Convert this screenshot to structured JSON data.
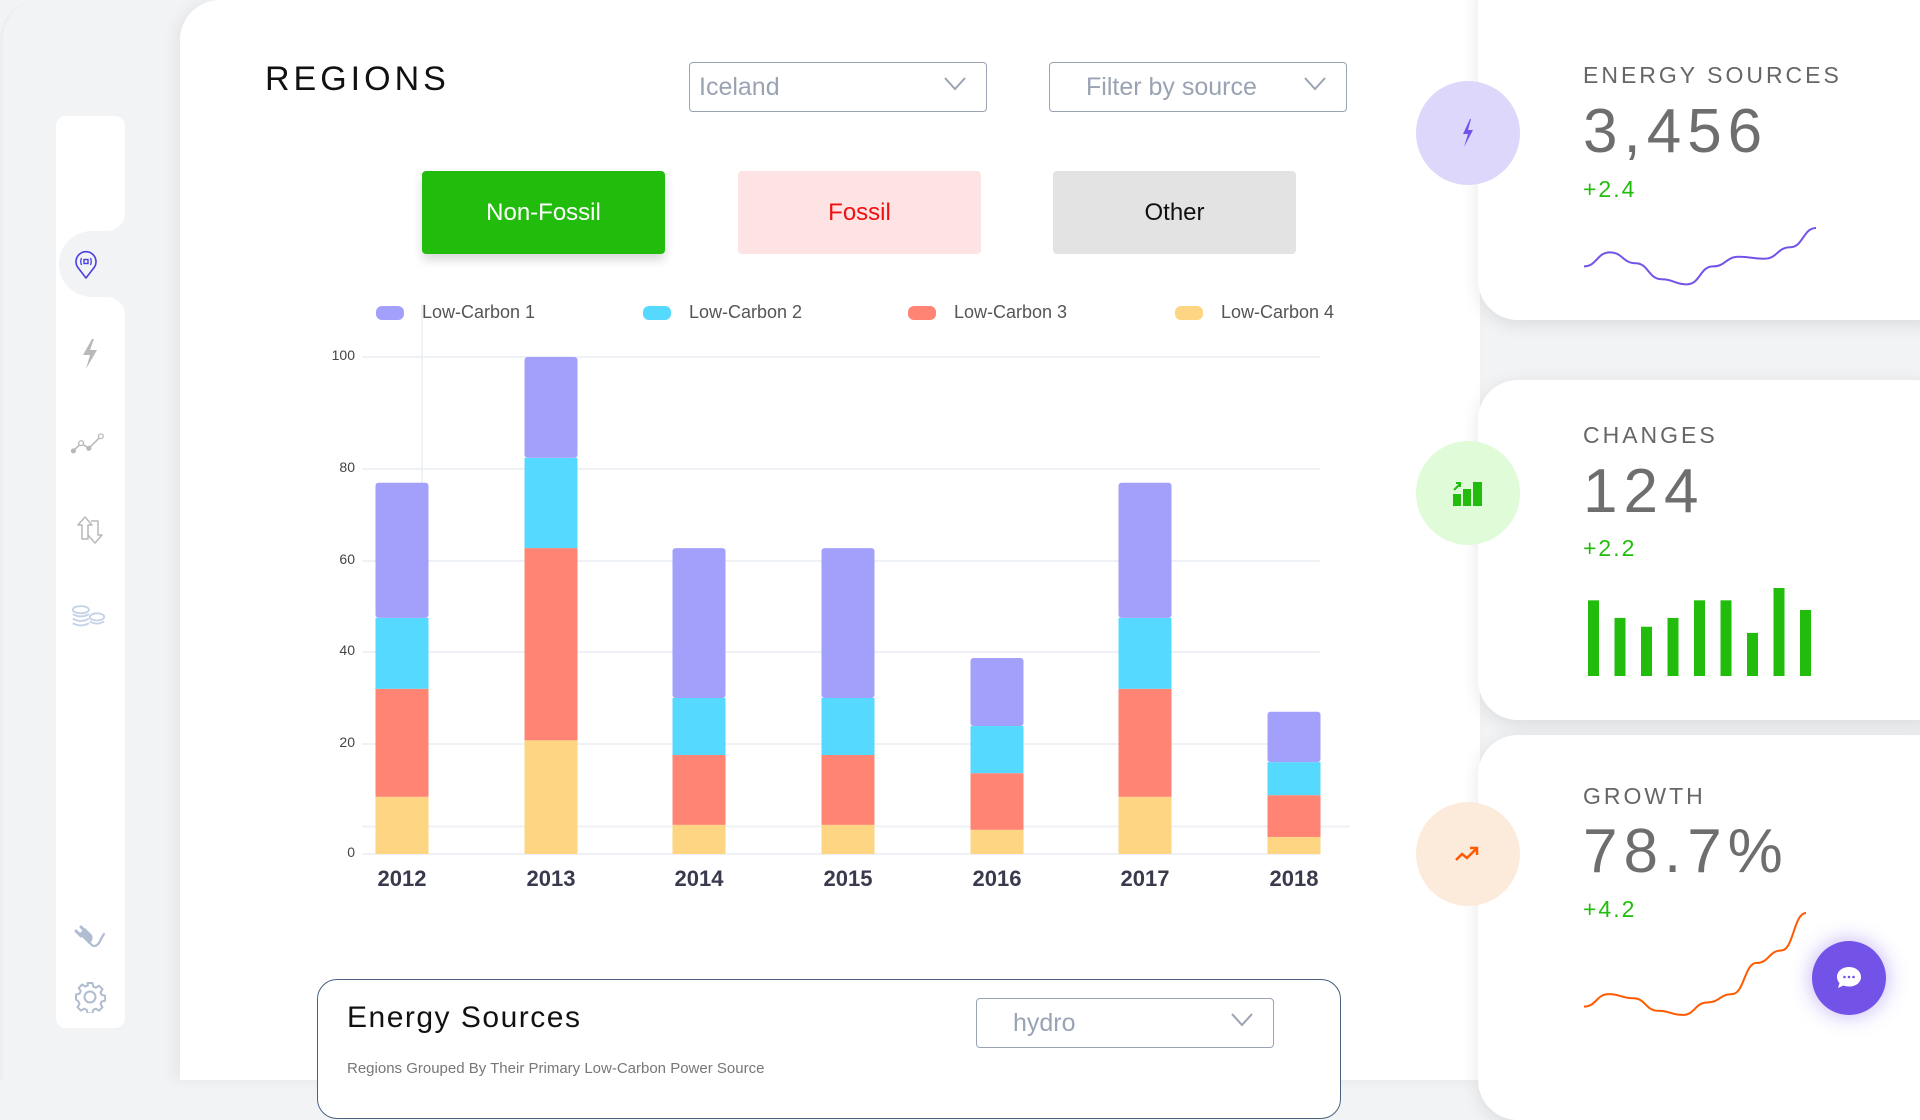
{
  "sidebar": {
    "items": [
      {
        "name": "regions",
        "icon": "map-pin-icon",
        "active": true
      },
      {
        "name": "energy",
        "icon": "lightning-icon",
        "active": false
      },
      {
        "name": "trends",
        "icon": "line-chart-icon",
        "active": false
      },
      {
        "name": "exchange",
        "icon": "swap-arrows-icon",
        "active": false
      },
      {
        "name": "costs",
        "icon": "coins-icon",
        "active": false
      }
    ],
    "bottom_items": [
      {
        "name": "plug",
        "icon": "plug-icon"
      },
      {
        "name": "settings",
        "icon": "gear-icon"
      }
    ],
    "active_color": "#4a3fe0",
    "icon_color": "#b9b9b9"
  },
  "header": {
    "title": "REGIONS",
    "region_select": {
      "value": "Iceland"
    },
    "source_select": {
      "placeholder": "Filter by source"
    }
  },
  "categories": {
    "buttons": [
      {
        "label": "Non-Fossil",
        "active": true,
        "bg": "#22bd0c",
        "color": "#ffffff"
      },
      {
        "label": "Fossil",
        "active": false,
        "bg": "#fde3e3",
        "color": "#f01010"
      },
      {
        "label": "Other",
        "active": false,
        "bg": "#e3e3e3",
        "color": "#111111"
      }
    ]
  },
  "chart_data": {
    "type": "bar",
    "stacked": true,
    "title": "",
    "xlabel": "",
    "ylabel": "",
    "categories": [
      "2012",
      "2013",
      "2014",
      "2015",
      "2016",
      "2017",
      "2018"
    ],
    "series": [
      {
        "name": "Low-Carbon 4",
        "color": "#fed683",
        "values": [
          10.4,
          20.8,
          5.3,
          5.3,
          4.4,
          10.4,
          3.1
        ]
      },
      {
        "name": "Low-Carbon 3",
        "color": "#ff8474",
        "values": [
          21.6,
          42.0,
          12.7,
          12.7,
          10.3,
          21.6,
          7.6
        ]
      },
      {
        "name": "Low-Carbon 2",
        "color": "#56d9fe",
        "values": [
          15.5,
          19.2,
          12.0,
          12.0,
          9.2,
          15.5,
          6.0
        ]
      },
      {
        "name": "Low-Carbon 1",
        "color": "#a3a0fb",
        "values": [
          29.5,
          18.0,
          32.8,
          32.8,
          14.8,
          29.5,
          10.3
        ]
      }
    ],
    "legend_order": [
      "Low-Carbon 1",
      "Low-Carbon 2",
      "Low-Carbon 3",
      "Low-Carbon 4"
    ],
    "legend_position": "top",
    "yticks": [
      0,
      20,
      40,
      60,
      80,
      100
    ],
    "ylim": [
      0,
      100
    ],
    "grid": true
  },
  "energy_sources_panel": {
    "title": "Energy Sources",
    "select_value": "hydro",
    "subtitle": "Regions Grouped By Their Primary Low-Carbon Power Source"
  },
  "stats": [
    {
      "label": "ENERGY SOURCES",
      "value": "3,456",
      "delta": "+2.4",
      "icon": "lightning-icon",
      "circle_bg": "#ddd7fb",
      "accent": "#7352e8",
      "spark_type": "line",
      "spark": [
        40,
        62,
        45,
        20,
        12,
        40,
        55,
        52,
        70,
        100
      ]
    },
    {
      "label": "CHANGES",
      "value": "124",
      "delta": "+2.2",
      "icon": "bar-chart-up-icon",
      "circle_bg": "#dffbd8",
      "accent": "#22bd0c",
      "spark_type": "bar",
      "spark": [
        86,
        66,
        56,
        66,
        86,
        86,
        49,
        100,
        75
      ]
    },
    {
      "label": "GROWTH",
      "value": "78.7%",
      "delta": "+4.2",
      "icon": "trend-up-icon",
      "circle_bg": "#fcebdb",
      "accent": "#ff5a00",
      "spark_type": "line",
      "spark": [
        10,
        22,
        18,
        6,
        2,
        14,
        22,
        52,
        64,
        100
      ]
    }
  ],
  "chat": {
    "icon": "chat-bubble-icon",
    "color": "#7352e8"
  }
}
